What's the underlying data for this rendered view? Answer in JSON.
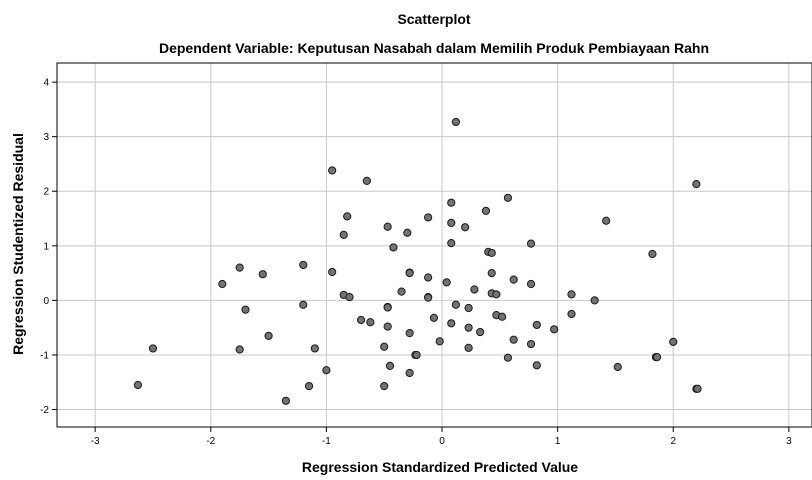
{
  "chart_data": {
    "type": "scatter",
    "title": "Scatterplot",
    "subtitle": "Dependent Variable: Keputusan Nasabah dalam Memilih Produk Pembiayaan Rahn",
    "xlabel": "Regression Standardized Predicted Value",
    "ylabel": "Regression Studentized Residual",
    "xlim": [
      -3.33,
      3.2
    ],
    "ylim": [
      -2.32,
      4.35
    ],
    "xticks": [
      -3,
      -2,
      -1,
      0,
      1,
      2,
      3
    ],
    "yticks": [
      -2,
      -1,
      0,
      1,
      2,
      3,
      4
    ],
    "grid": true,
    "legend": "none",
    "colors": {
      "point_fill": "#737373",
      "point_stroke": "#1a1a1a",
      "grid": "#c8c8c8",
      "axis": "#000000"
    },
    "points": [
      [
        -2.63,
        -1.55
      ],
      [
        -2.5,
        -0.88
      ],
      [
        -1.9,
        0.3
      ],
      [
        -1.75,
        0.6
      ],
      [
        -1.75,
        -0.9
      ],
      [
        -1.7,
        -0.17
      ],
      [
        -1.55,
        0.48
      ],
      [
        -1.5,
        -0.65
      ],
      [
        -1.2,
        0.65
      ],
      [
        -1.2,
        -0.08
      ],
      [
        -1.15,
        -1.57
      ],
      [
        -1.1,
        -0.88
      ],
      [
        -1.35,
        -1.84
      ],
      [
        -1.0,
        -1.28
      ],
      [
        -0.95,
        2.38
      ],
      [
        -0.95,
        0.52
      ],
      [
        -0.85,
        1.2
      ],
      [
        -0.85,
        0.1
      ],
      [
        -0.82,
        1.54
      ],
      [
        -0.8,
        0.06
      ],
      [
        -0.7,
        -0.36
      ],
      [
        -0.65,
        2.19
      ],
      [
        -0.62,
        -0.4
      ],
      [
        -0.5,
        -0.85
      ],
      [
        -0.5,
        -1.57
      ],
      [
        -0.47,
        1.35
      ],
      [
        -0.47,
        -0.12
      ],
      [
        -0.47,
        -0.13
      ],
      [
        -0.47,
        -0.48
      ],
      [
        -0.45,
        -1.2
      ],
      [
        -0.42,
        0.97
      ],
      [
        -0.35,
        0.16
      ],
      [
        -0.3,
        1.24
      ],
      [
        -0.28,
        0.51
      ],
      [
        -0.28,
        0.5
      ],
      [
        -0.28,
        -0.6
      ],
      [
        -0.28,
        -1.33
      ],
      [
        -0.23,
        -1.0
      ],
      [
        -0.22,
        -1.0
      ],
      [
        -0.12,
        1.52
      ],
      [
        -0.12,
        0.42
      ],
      [
        -0.12,
        0.06
      ],
      [
        -0.12,
        0.05
      ],
      [
        -0.07,
        -0.32
      ],
      [
        -0.02,
        -0.75
      ],
      [
        0.04,
        0.33
      ],
      [
        0.08,
        1.79
      ],
      [
        0.08,
        1.42
      ],
      [
        0.08,
        1.05
      ],
      [
        0.08,
        -0.42
      ],
      [
        0.12,
        3.27
      ],
      [
        0.12,
        -0.08
      ],
      [
        0.2,
        1.34
      ],
      [
        0.23,
        -0.14
      ],
      [
        0.23,
        -0.5
      ],
      [
        0.23,
        -0.87
      ],
      [
        0.28,
        0.2
      ],
      [
        0.33,
        -0.58
      ],
      [
        0.38,
        1.64
      ],
      [
        0.4,
        0.89
      ],
      [
        0.43,
        0.87
      ],
      [
        0.43,
        0.5
      ],
      [
        0.43,
        0.13
      ],
      [
        0.47,
        0.11
      ],
      [
        0.47,
        -0.27
      ],
      [
        0.52,
        -0.3
      ],
      [
        0.57,
        1.88
      ],
      [
        0.57,
        -1.05
      ],
      [
        0.62,
        0.38
      ],
      [
        0.62,
        -0.72
      ],
      [
        0.77,
        1.04
      ],
      [
        0.77,
        0.3
      ],
      [
        0.77,
        -0.8
      ],
      [
        0.82,
        -0.45
      ],
      [
        0.82,
        -1.19
      ],
      [
        0.97,
        -0.53
      ],
      [
        1.12,
        0.11
      ],
      [
        1.12,
        -0.25
      ],
      [
        1.32,
        0.0
      ],
      [
        1.42,
        1.46
      ],
      [
        1.52,
        -1.22
      ],
      [
        1.82,
        0.85
      ],
      [
        1.85,
        -1.04
      ],
      [
        1.86,
        -1.04
      ],
      [
        2.0,
        -0.76
      ],
      [
        2.2,
        2.13
      ],
      [
        2.2,
        -1.62
      ],
      [
        2.21,
        -1.62
      ]
    ]
  }
}
